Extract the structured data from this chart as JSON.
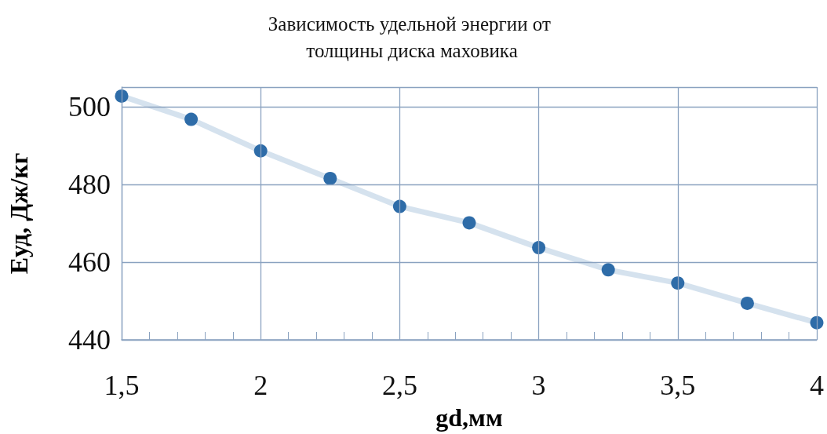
{
  "chart_data": {
    "type": "line",
    "title": "Зависимость удельной энергии от толщины диска маховика",
    "xlabel": "gd,мм",
    "ylabel": "Еуд, Дж/кг",
    "x": [
      1.5,
      1.75,
      2,
      2.25,
      2.5,
      2.75,
      3,
      3.25,
      3.5,
      3.75,
      4
    ],
    "series": [
      {
        "color": "#2e6ca8",
        "values": [
          502.7,
          496.7,
          488.6,
          481.5,
          474.3,
          470.1,
          463.7,
          458.0,
          454.6,
          449.4,
          444.4
        ]
      }
    ],
    "xlim": [
      1.5,
      4
    ],
    "ylim": [
      440,
      505
    ],
    "xticks": [
      {
        "value": 1.5,
        "label": "1,5"
      },
      {
        "value": 1.6,
        "label": null
      },
      {
        "value": 1.7,
        "label": null
      },
      {
        "value": 1.8,
        "label": null
      },
      {
        "value": 1.9,
        "label": null
      },
      2,
      {
        "value": 2.1,
        "label": null
      },
      {
        "value": 2.2,
        "label": null
      },
      {
        "value": 2.3,
        "label": null
      },
      {
        "value": 2.4,
        "label": null
      },
      {
        "value": 2.5,
        "label": "2,5"
      },
      {
        "value": 2.6,
        "label": null
      },
      {
        "value": 2.7,
        "label": null
      },
      {
        "value": 2.8,
        "label": null
      },
      {
        "value": 2.9,
        "label": null
      },
      3,
      {
        "value": 3.1,
        "label": null
      },
      {
        "value": 3.2,
        "label": null
      },
      {
        "value": 3.3,
        "label": null
      },
      {
        "value": 3.4,
        "label": null
      },
      {
        "value": 3.5,
        "label": "3,5"
      },
      {
        "value": 3.6,
        "label": null
      },
      {
        "value": 3.7,
        "label": null
      },
      {
        "value": 3.8,
        "label": null
      },
      {
        "value": 3.9,
        "label": null
      },
      4
    ],
    "yticks": [
      440,
      460,
      480,
      500
    ],
    "grid": true,
    "marker": "circle",
    "line_style": "solid"
  }
}
